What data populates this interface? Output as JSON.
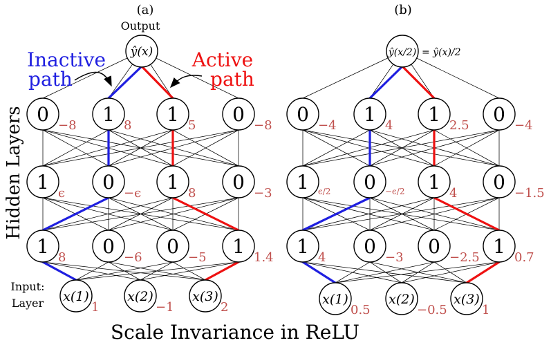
{
  "panels": [
    {
      "label": "(a)",
      "output": {
        "text": "ŷ(x)",
        "caption": "Output"
      },
      "annotations": {
        "inactive_line1": "Inactive",
        "inactive_line2": "path",
        "active_line1": "Active",
        "active_line2": "path",
        "inactive_color": "#1f1fe0",
        "active_color": "#ee1111"
      },
      "layers": [
        {
          "activations": [
            "0",
            "1",
            "1",
            "0"
          ],
          "biases": [
            "−8",
            "8",
            "5",
            "−8"
          ]
        },
        {
          "activations": [
            "1",
            "0",
            "1",
            "0"
          ],
          "biases": [
            "ϵ",
            "−ϵ",
            "8",
            "−3"
          ]
        },
        {
          "activations": [
            "1",
            "0",
            "0",
            "1"
          ],
          "biases": [
            "8",
            "−6",
            "−5",
            "1.4"
          ]
        }
      ],
      "inputs": [
        {
          "text": "x(1)",
          "value": "1"
        },
        {
          "text": "x(2)",
          "value": "−1"
        },
        {
          "text": "x(3)",
          "value": "2"
        }
      ]
    },
    {
      "label": "(b)",
      "output": {
        "text": "ŷ(x/2)",
        "equals": "= ŷ(x)/2"
      },
      "layers": [
        {
          "activations": [
            "0",
            "1",
            "1",
            "0"
          ],
          "biases": [
            "−4",
            "4",
            "2.5",
            "−4"
          ]
        },
        {
          "activations": [
            "1",
            "0",
            "1",
            "0"
          ],
          "biases": [
            "ϵ/2",
            "−ϵ/2",
            "4",
            "−1.5"
          ]
        },
        {
          "activations": [
            "1",
            "0",
            "0",
            "1"
          ],
          "biases": [
            "4",
            "−3",
            "−2.5",
            "0.7"
          ]
        }
      ],
      "inputs": [
        {
          "text": "x(1)",
          "value": "0.5"
        },
        {
          "text": "x(2)",
          "value": "−0.5"
        },
        {
          "text": "x(3)",
          "value": "1"
        }
      ]
    }
  ],
  "hidden_layers_label": "Hidden Layers",
  "input_label_line1": "Input:",
  "input_label_line2": "Layer",
  "title": "Scale Invariance in ReLU",
  "colors": {
    "bias": "#c0504d",
    "blue": "#1f1fe0",
    "red": "#ee1111"
  }
}
